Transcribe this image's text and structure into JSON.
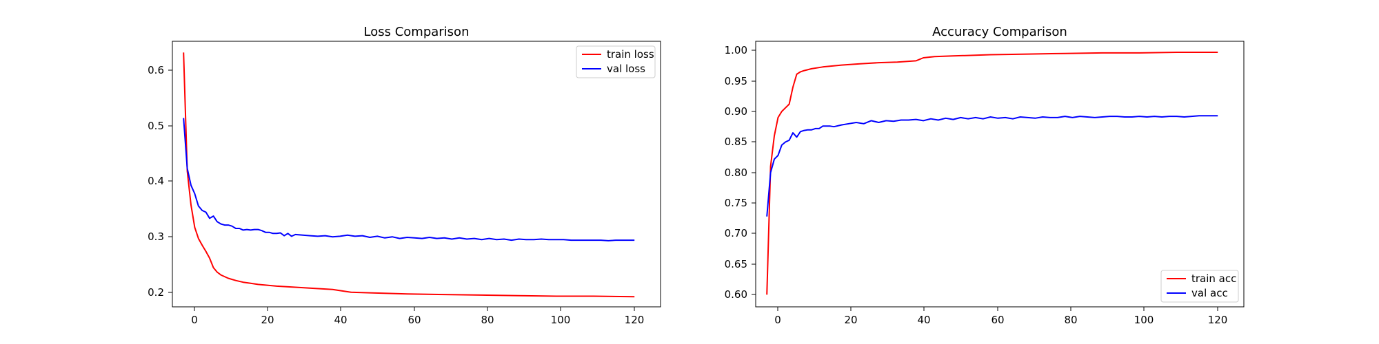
{
  "chart_data": [
    {
      "type": "line",
      "title": "Loss Comparison",
      "xlabel": "",
      "ylabel": "",
      "xlim": [
        -3,
        128
      ],
      "ylim": [
        0.178,
        0.652
      ],
      "xticks": [
        "0",
        "20",
        "40",
        "60",
        "80",
        "100",
        "120"
      ],
      "yticks": [
        "0.2",
        "0.3",
        "0.4",
        "0.5",
        "0.6"
      ],
      "grid": false,
      "legend_position": "upper right",
      "series": [
        {
          "name": "train loss",
          "color": "#ff0000",
          "x": [
            0,
            1,
            2,
            3,
            4,
            5,
            6,
            7,
            8,
            9,
            10,
            12,
            14,
            16,
            18,
            20,
            25,
            30,
            35,
            40,
            42,
            45,
            50,
            60,
            70,
            80,
            90,
            100,
            110,
            121
          ],
          "y": [
            0.632,
            0.42,
            0.36,
            0.32,
            0.3,
            0.288,
            0.277,
            0.265,
            0.248,
            0.24,
            0.235,
            0.229,
            0.225,
            0.222,
            0.22,
            0.218,
            0.215,
            0.213,
            0.211,
            0.209,
            0.207,
            0.204,
            0.203,
            0.201,
            0.2,
            0.199,
            0.198,
            0.197,
            0.197,
            0.196
          ]
        },
        {
          "name": "val loss",
          "color": "#0000ff",
          "x": [
            0,
            1,
            2,
            3,
            4,
            5,
            6,
            7,
            8,
            9,
            10,
            11,
            12,
            13,
            14,
            15,
            16,
            17,
            18,
            19,
            20,
            21,
            22,
            23,
            24,
            25,
            26,
            27,
            28,
            29,
            30,
            32,
            34,
            36,
            38,
            40,
            42,
            44,
            46,
            48,
            50,
            52,
            54,
            56,
            58,
            60,
            62,
            64,
            66,
            68,
            70,
            72,
            74,
            76,
            78,
            80,
            82,
            84,
            86,
            88,
            90,
            92,
            94,
            96,
            98,
            100,
            102,
            104,
            106,
            108,
            110,
            112,
            114,
            116,
            118,
            121
          ],
          "y": [
            0.515,
            0.425,
            0.395,
            0.38,
            0.358,
            0.35,
            0.347,
            0.336,
            0.34,
            0.33,
            0.326,
            0.324,
            0.324,
            0.322,
            0.318,
            0.318,
            0.315,
            0.316,
            0.315,
            0.316,
            0.316,
            0.314,
            0.311,
            0.311,
            0.309,
            0.309,
            0.31,
            0.305,
            0.309,
            0.304,
            0.307,
            0.306,
            0.305,
            0.304,
            0.305,
            0.303,
            0.304,
            0.306,
            0.304,
            0.305,
            0.302,
            0.304,
            0.301,
            0.303,
            0.3,
            0.302,
            0.301,
            0.3,
            0.302,
            0.3,
            0.301,
            0.299,
            0.301,
            0.299,
            0.3,
            0.298,
            0.3,
            0.298,
            0.299,
            0.297,
            0.299,
            0.298,
            0.298,
            0.299,
            0.298,
            0.298,
            0.298,
            0.297,
            0.297,
            0.297,
            0.297,
            0.297,
            0.296,
            0.297,
            0.297,
            0.297
          ]
        }
      ]
    },
    {
      "type": "line",
      "title": "Accuracy Comparison",
      "xlabel": "",
      "ylabel": "",
      "xlim": [
        -3,
        128
      ],
      "ylim": [
        0.57,
        1.005
      ],
      "xticks": [
        "0",
        "20",
        "40",
        "60",
        "80",
        "100",
        "120"
      ],
      "yticks": [
        "0.60",
        "0.65",
        "0.70",
        "0.75",
        "0.80",
        "0.85",
        "0.90",
        "0.95",
        "1.00"
      ],
      "grid": false,
      "legend_position": "lower right",
      "series": [
        {
          "name": "train acc",
          "color": "#ff0000",
          "x": [
            0,
            1,
            2,
            3,
            4,
            5,
            6,
            7,
            8,
            9,
            10,
            12,
            15,
            20,
            25,
            30,
            35,
            40,
            42,
            45,
            50,
            60,
            70,
            80,
            90,
            100,
            110,
            121
          ],
          "y": [
            0.59,
            0.8,
            0.85,
            0.88,
            0.89,
            0.896,
            0.902,
            0.93,
            0.951,
            0.955,
            0.957,
            0.96,
            0.963,
            0.966,
            0.968,
            0.97,
            0.971,
            0.973,
            0.978,
            0.98,
            0.981,
            0.983,
            0.984,
            0.985,
            0.986,
            0.986,
            0.987,
            0.987
          ]
        },
        {
          "name": "val acc",
          "color": "#0000ff",
          "x": [
            0,
            1,
            2,
            3,
            4,
            5,
            6,
            7,
            8,
            9,
            10,
            11,
            12,
            13,
            14,
            15,
            16,
            17,
            18,
            20,
            22,
            24,
            26,
            28,
            30,
            32,
            34,
            36,
            38,
            40,
            42,
            44,
            46,
            48,
            50,
            52,
            54,
            56,
            58,
            60,
            62,
            64,
            66,
            68,
            70,
            72,
            74,
            76,
            78,
            80,
            82,
            84,
            86,
            88,
            90,
            92,
            94,
            96,
            98,
            100,
            102,
            104,
            106,
            108,
            110,
            112,
            114,
            116,
            118,
            121
          ],
          "y": [
            0.718,
            0.79,
            0.812,
            0.818,
            0.835,
            0.84,
            0.843,
            0.855,
            0.848,
            0.857,
            0.859,
            0.86,
            0.86,
            0.862,
            0.862,
            0.866,
            0.866,
            0.866,
            0.865,
            0.868,
            0.87,
            0.872,
            0.87,
            0.875,
            0.872,
            0.875,
            0.874,
            0.876,
            0.876,
            0.877,
            0.875,
            0.878,
            0.876,
            0.879,
            0.877,
            0.88,
            0.878,
            0.88,
            0.878,
            0.881,
            0.879,
            0.88,
            0.878,
            0.881,
            0.88,
            0.879,
            0.881,
            0.88,
            0.88,
            0.882,
            0.88,
            0.882,
            0.881,
            0.88,
            0.881,
            0.882,
            0.882,
            0.881,
            0.881,
            0.882,
            0.881,
            0.882,
            0.881,
            0.882,
            0.882,
            0.881,
            0.882,
            0.883,
            0.883,
            0.883
          ]
        }
      ]
    }
  ]
}
